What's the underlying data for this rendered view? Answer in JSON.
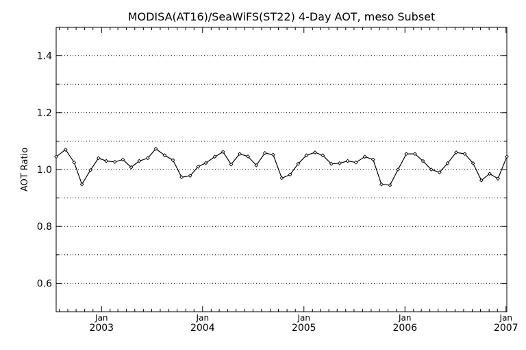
{
  "chart_data": {
    "type": "line",
    "title": "MODISA(AT16)/SeaWiFS(ST22) 4-Day AOT, meso Subset",
    "xlabel": "",
    "ylabel": "AOT Ratio",
    "ylim": [
      0.5,
      1.5
    ],
    "xlim": [
      "2002-07-21",
      "2007-01-04"
    ],
    "yticks": [
      0.6,
      0.8,
      1.0,
      1.2,
      1.4
    ],
    "ytick_labels": [
      "0.6",
      "0.8",
      "1.0",
      "1.2",
      "1.4"
    ],
    "grid": "horizontal dotted at every 0.1",
    "xticks": [
      {
        "date": "2003-01-01",
        "month": "Jan",
        "year": "2003"
      },
      {
        "date": "2004-01-01",
        "month": "Jan",
        "year": "2004"
      },
      {
        "date": "2005-01-01",
        "month": "Jan",
        "year": "2005"
      },
      {
        "date": "2006-01-01",
        "month": "Jan",
        "year": "2006"
      },
      {
        "date": "2007-01-01",
        "month": "Jan",
        "year": "2007"
      }
    ],
    "series": [
      {
        "x": [
          "2002-07-21",
          "2002-08-24",
          "2002-09-24",
          "2002-10-22",
          "2002-11-22",
          "2002-12-21",
          "2003-01-18",
          "2003-02-18",
          "2003-03-19",
          "2003-04-18",
          "2003-05-17",
          "2003-06-17",
          "2003-07-16",
          "2003-08-17",
          "2003-09-16",
          "2003-10-17",
          "2003-11-17",
          "2003-12-16",
          "2004-01-13",
          "2004-02-14",
          "2004-03-15",
          "2004-04-13",
          "2004-05-14",
          "2004-06-13",
          "2004-07-13",
          "2004-08-13",
          "2004-09-12",
          "2004-10-13",
          "2004-11-12",
          "2004-12-11",
          "2005-01-10",
          "2005-02-10",
          "2005-03-10",
          "2005-04-10",
          "2005-05-10",
          "2005-06-08",
          "2005-07-08",
          "2005-08-09",
          "2005-09-08",
          "2005-10-08",
          "2005-11-08",
          "2005-12-07",
          "2006-01-06",
          "2006-02-06",
          "2006-03-07",
          "2006-04-06",
          "2006-05-06",
          "2006-06-04",
          "2006-07-05",
          "2006-08-05",
          "2006-09-04",
          "2006-10-04",
          "2006-11-03",
          "2006-12-03",
          "2007-01-04"
        ],
        "values": [
          1.045,
          1.07,
          1.025,
          0.948,
          0.998,
          1.04,
          1.03,
          1.027,
          1.035,
          1.008,
          1.03,
          1.04,
          1.073,
          1.05,
          1.033,
          0.973,
          0.978,
          1.01,
          1.023,
          1.045,
          1.062,
          1.018,
          1.055,
          1.046,
          1.015,
          1.058,
          1.052,
          0.97,
          0.982,
          1.02,
          1.05,
          1.06,
          1.05,
          1.02,
          1.022,
          1.03,
          1.025,
          1.045,
          1.035,
          0.948,
          0.945,
          1.0,
          1.055,
          1.055,
          1.03,
          1.0,
          0.99,
          1.022,
          1.06,
          1.055,
          1.022,
          0.962,
          0.985,
          0.968,
          1.045
        ]
      }
    ]
  }
}
